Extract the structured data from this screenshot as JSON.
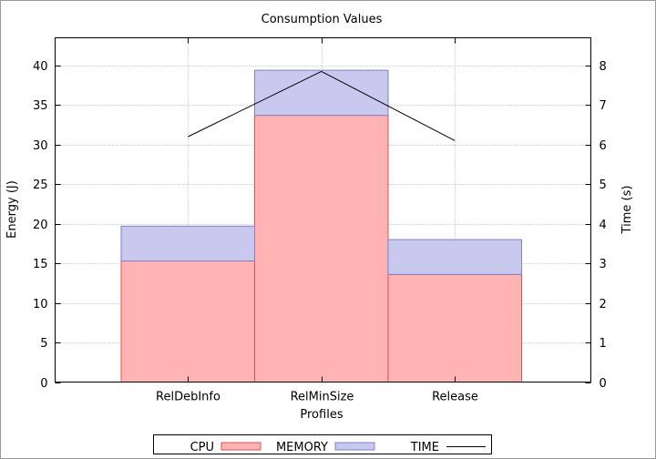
{
  "chart_data": {
    "type": "bar",
    "stacked": true,
    "title": "Consumption Values",
    "xlabel": "Profiles",
    "ylabel": "Energy (J)",
    "y2label": "Time (s)",
    "categories": [
      "RelDebInfo",
      "RelMinSize",
      "Release"
    ],
    "ylim": [
      0,
      43.5
    ],
    "y2lim": [
      0,
      8.7
    ],
    "yticks": [
      0,
      5,
      10,
      15,
      20,
      25,
      30,
      35,
      40
    ],
    "y2ticks": [
      0,
      1,
      2,
      3,
      4,
      5,
      6,
      7,
      8
    ],
    "grid": true,
    "legend_position": "bottom",
    "series": [
      {
        "name": "CPU",
        "axis": "left",
        "values": [
          15.3,
          33.7,
          13.6
        ],
        "color": "#ffb3b3",
        "stroke": "#e05050"
      },
      {
        "name": "MEMORY",
        "axis": "left",
        "values": [
          4.4,
          5.7,
          4.4
        ],
        "color": "#c9c9ef",
        "stroke": "#8080c8"
      },
      {
        "name": "TIME",
        "axis": "right",
        "type": "line",
        "values": [
          6.2,
          7.85,
          6.1
        ],
        "color": "#000000"
      }
    ]
  }
}
